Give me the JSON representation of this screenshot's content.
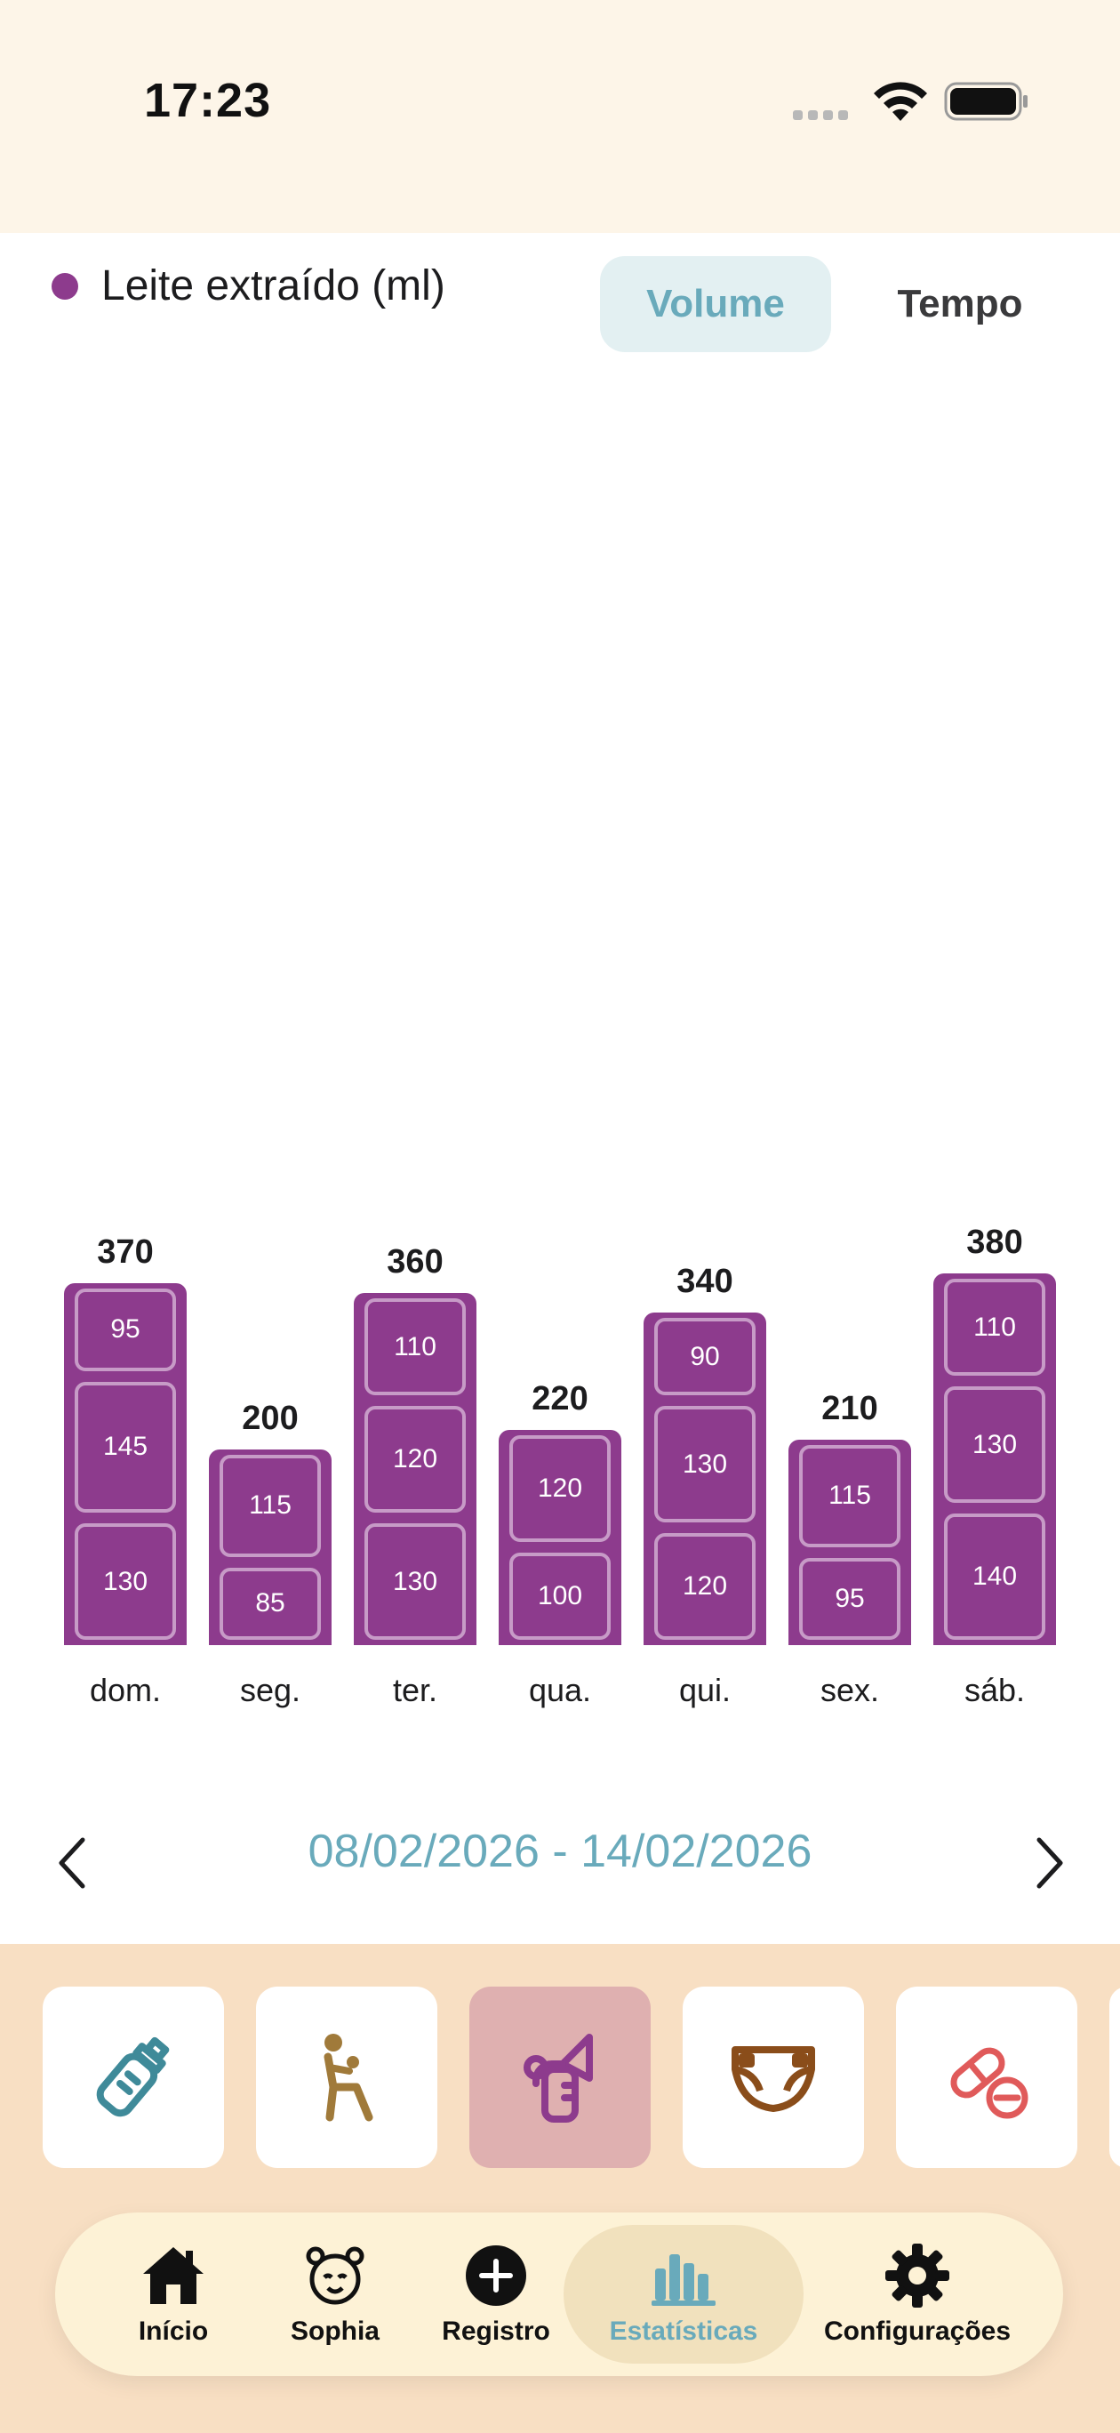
{
  "status_bar": {
    "time": "17:23"
  },
  "legend": {
    "label": "Leite extraído (ml)",
    "color": "#8d3b8d"
  },
  "toggle": {
    "volume_label": "Volume",
    "tempo_label": "Tempo",
    "selected": "Volume"
  },
  "chart_data": {
    "type": "bar",
    "stacked": true,
    "categories": [
      "dom.",
      "seg.",
      "ter.",
      "qua.",
      "qui.",
      "sex.",
      "sáb."
    ],
    "totals": [
      370,
      200,
      360,
      220,
      340,
      210,
      380
    ],
    "stacks": [
      [
        130,
        145,
        95
      ],
      [
        85,
        115
      ],
      [
        130,
        120,
        110
      ],
      [
        100,
        120
      ],
      [
        120,
        130,
        90
      ],
      [
        95,
        115
      ],
      [
        140,
        130,
        110
      ]
    ],
    "legend": [
      "Leite extraído (ml)"
    ],
    "color": "#8d3b8d",
    "grid": false
  },
  "date_nav": {
    "range": "08/02/2026 - 14/02/2026"
  },
  "categories": [
    {
      "icon": "baby-bottle-icon",
      "color": "#3f8a99"
    },
    {
      "icon": "nursing-mother-icon",
      "color": "#a07a3a"
    },
    {
      "icon": "breast-pump-icon",
      "color": "#8d3b8d",
      "active": true
    },
    {
      "icon": "diaper-icon",
      "color": "#8a4d1a"
    },
    {
      "icon": "medicine-pill-icon",
      "color": "#e05a5a"
    }
  ],
  "tabbar": {
    "inicio": "Início",
    "sophia": "Sophia",
    "registro": "Registro",
    "estatisticas": "Estatísticas",
    "configuracoes": "Configurações",
    "active": "Estatísticas"
  }
}
